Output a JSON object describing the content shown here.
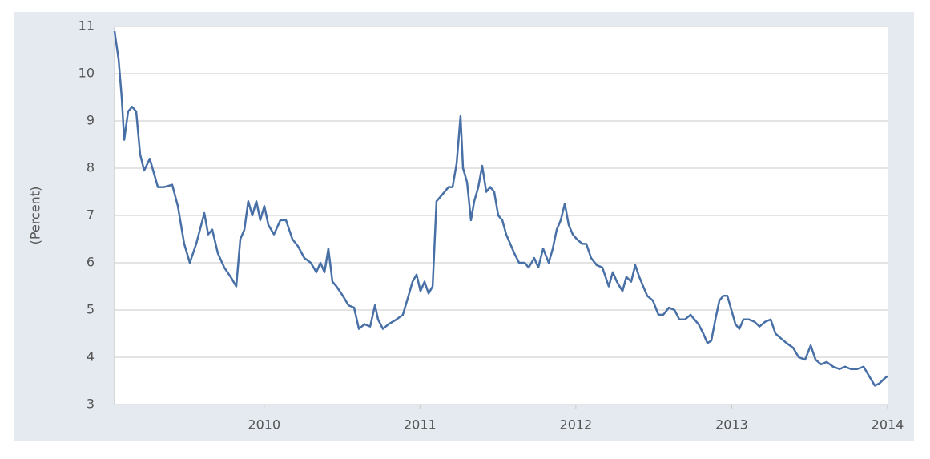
{
  "chart_data": {
    "type": "line",
    "y_label": "(Percent)",
    "x": [
      2009.04,
      2009.066,
      2009.086,
      2009.102,
      2009.127,
      2009.153,
      2009.179,
      2009.204,
      2009.23,
      2009.266,
      2009.292,
      2009.318,
      2009.359,
      2009.41,
      2009.446,
      2009.487,
      2009.523,
      2009.564,
      2009.616,
      2009.641,
      2009.667,
      2009.703,
      2009.744,
      2009.785,
      2009.821,
      2009.847,
      2009.873,
      2009.898,
      2009.924,
      2009.95,
      2009.975,
      2010.001,
      2010.027,
      2010.063,
      2010.104,
      2010.14,
      2010.181,
      2010.217,
      2010.258,
      2010.299,
      2010.335,
      2010.361,
      2010.387,
      2010.412,
      2010.438,
      2010.464,
      2010.505,
      2010.541,
      2010.577,
      2010.608,
      2010.644,
      2010.68,
      2010.711,
      2010.731,
      2010.762,
      2010.798,
      2010.849,
      2010.89,
      2010.926,
      2010.952,
      2010.978,
      2011.003,
      2011.029,
      2011.055,
      2011.081,
      2011.106,
      2011.132,
      2011.158,
      2011.183,
      2011.209,
      2011.235,
      2011.26,
      2011.276,
      2011.302,
      2011.327,
      2011.348,
      2011.374,
      2011.399,
      2011.425,
      2011.451,
      2011.476,
      2011.502,
      2011.528,
      2011.553,
      2011.579,
      2011.605,
      2011.636,
      2011.672,
      2011.697,
      2011.733,
      2011.759,
      2011.79,
      2011.826,
      2011.852,
      2011.877,
      2011.903,
      2011.929,
      2011.954,
      2011.98,
      2012.006,
      2012.042,
      2012.067,
      2012.098,
      2012.134,
      2012.17,
      2012.211,
      2012.237,
      2012.263,
      2012.299,
      2012.324,
      2012.355,
      2012.381,
      2012.407,
      2012.432,
      2012.458,
      2012.494,
      2012.53,
      2012.561,
      2012.597,
      2012.633,
      2012.664,
      2012.7,
      2012.736,
      2012.761,
      2012.787,
      2012.818,
      2012.844,
      2012.869,
      2012.895,
      2012.921,
      2012.946,
      2012.972,
      2012.998,
      2013.024,
      2013.049,
      2013.075,
      2013.111,
      2013.147,
      2013.178,
      2013.214,
      2013.25,
      2013.281,
      2013.316,
      2013.352,
      2013.394,
      2013.43,
      2013.471,
      2013.507,
      2013.538,
      2013.573,
      2013.609,
      2013.651,
      2013.692,
      2013.728,
      2013.764,
      2013.805,
      2013.846,
      2013.882,
      2013.918,
      2013.949,
      2013.98,
      2014.0
    ],
    "series": [
      {
        "color": "#4870a6",
        "values": [
          10.9,
          10.3,
          9.5,
          8.6,
          9.2,
          9.3,
          9.2,
          8.3,
          7.95,
          8.2,
          7.9,
          7.6,
          7.6,
          7.65,
          7.2,
          6.4,
          6.0,
          6.4,
          7.05,
          6.6,
          6.7,
          6.2,
          5.9,
          5.7,
          5.5,
          6.5,
          6.7,
          7.3,
          7.0,
          7.3,
          6.9,
          7.2,
          6.8,
          6.6,
          6.9,
          6.9,
          6.5,
          6.35,
          6.1,
          6.0,
          5.8,
          6.0,
          5.8,
          6.3,
          5.6,
          5.5,
          5.3,
          5.1,
          5.05,
          4.6,
          4.7,
          4.65,
          5.1,
          4.8,
          4.6,
          4.7,
          4.8,
          4.9,
          5.3,
          5.6,
          5.75,
          5.4,
          5.6,
          5.35,
          5.5,
          7.3,
          7.4,
          7.5,
          7.6,
          7.6,
          8.1,
          9.1,
          8.0,
          7.7,
          6.9,
          7.3,
          7.6,
          8.05,
          7.5,
          7.6,
          7.5,
          7.0,
          6.9,
          6.6,
          6.4,
          6.2,
          6.0,
          6.0,
          5.9,
          6.1,
          5.9,
          6.3,
          6.0,
          6.3,
          6.7,
          6.9,
          7.25,
          6.8,
          6.6,
          6.5,
          6.4,
          6.4,
          6.1,
          5.95,
          5.9,
          5.5,
          5.8,
          5.6,
          5.4,
          5.7,
          5.6,
          5.95,
          5.7,
          5.5,
          5.3,
          5.2,
          4.9,
          4.9,
          5.05,
          5.0,
          4.8,
          4.8,
          4.9,
          4.8,
          4.7,
          4.5,
          4.3,
          4.35,
          4.8,
          5.2,
          5.3,
          5.3,
          5.0,
          4.7,
          4.6,
          4.8,
          4.8,
          4.75,
          4.65,
          4.75,
          4.8,
          4.5,
          4.4,
          4.3,
          4.2,
          4.0,
          3.95,
          4.25,
          3.95,
          3.85,
          3.9,
          3.8,
          3.75,
          3.8,
          3.75,
          3.75,
          3.8,
          3.6,
          3.4,
          3.45,
          3.55,
          3.6
        ]
      }
    ],
    "xlim": [
      2009.04,
      2014.0
    ],
    "xticks": [
      2010,
      2011,
      2012,
      2013,
      2014
    ],
    "ylim": [
      3,
      11
    ],
    "yticks": [
      3,
      4,
      5,
      6,
      7,
      8,
      9,
      10,
      11
    ],
    "grid": true
  }
}
